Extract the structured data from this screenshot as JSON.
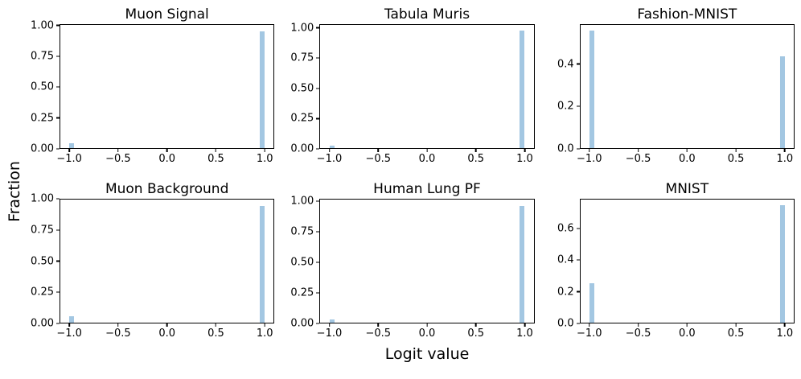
{
  "figure": {
    "ylabel": "Fraction",
    "xlabel": "Logit value",
    "bar_color": "#a3c7e2",
    "axis_color": "#000000",
    "background": "#ffffff"
  },
  "chart_data": [
    {
      "type": "bar",
      "title": "Muon Signal",
      "bars": [
        {
          "x": -0.98,
          "fraction": 0.04
        },
        {
          "x": 0.98,
          "fraction": 0.96
        }
      ],
      "bar_width": 0.05,
      "xlim": [
        -1.1,
        1.1
      ],
      "ylim": [
        0,
        1.01
      ],
      "xticks": [
        -1.0,
        -0.5,
        0.0,
        0.5,
        1.0
      ],
      "xtick_labels": [
        "−1.0",
        "−0.5",
        "0.0",
        "0.5",
        "1.0"
      ],
      "yticks": [
        0.0,
        0.25,
        0.5,
        0.75,
        1.0
      ],
      "ytick_labels": [
        "0.00",
        "0.25",
        "0.50",
        "0.75",
        "1.00"
      ]
    },
    {
      "type": "bar",
      "title": "Tabula Muris",
      "bars": [
        {
          "x": -0.98,
          "fraction": 0.02
        },
        {
          "x": 0.98,
          "fraction": 0.98
        }
      ],
      "bar_width": 0.05,
      "xlim": [
        -1.1,
        1.1
      ],
      "ylim": [
        0,
        1.03
      ],
      "xticks": [
        -1.0,
        -0.5,
        0.0,
        0.5,
        1.0
      ],
      "xtick_labels": [
        "−1.0",
        "−0.5",
        "0.0",
        "0.5",
        "1.0"
      ],
      "yticks": [
        0.0,
        0.25,
        0.5,
        0.75,
        1.0
      ],
      "ytick_labels": [
        "0.00",
        "0.25",
        "0.50",
        "0.75",
        "1.00"
      ]
    },
    {
      "type": "bar",
      "title": "Fashion-MNIST",
      "bars": [
        {
          "x": -0.98,
          "fraction": 0.56
        },
        {
          "x": 0.98,
          "fraction": 0.44
        }
      ],
      "bar_width": 0.05,
      "xlim": [
        -1.1,
        1.1
      ],
      "ylim": [
        0,
        0.588
      ],
      "xticks": [
        -1.0,
        -0.5,
        0.0,
        0.5,
        1.0
      ],
      "xtick_labels": [
        "−1.0",
        "−0.5",
        "0.0",
        "0.5",
        "1.0"
      ],
      "yticks": [
        0.0,
        0.2,
        0.4
      ],
      "ytick_labels": [
        "0.0",
        "0.2",
        "0.4"
      ]
    },
    {
      "type": "bar",
      "title": "Muon Background",
      "bars": [
        {
          "x": -0.98,
          "fraction": 0.05
        },
        {
          "x": 0.98,
          "fraction": 0.95
        }
      ],
      "bar_width": 0.05,
      "xlim": [
        -1.1,
        1.1
      ],
      "ylim": [
        0,
        1.0
      ],
      "xticks": [
        -1.0,
        -0.5,
        0.0,
        0.5,
        1.0
      ],
      "xtick_labels": [
        "−1.0",
        "−0.5",
        "0.0",
        "0.5",
        "1.0"
      ],
      "yticks": [
        0.0,
        0.25,
        0.5,
        0.75,
        1.0
      ],
      "ytick_labels": [
        "0.00",
        "0.25",
        "0.50",
        "0.75",
        "1.00"
      ]
    },
    {
      "type": "bar",
      "title": "Human Lung PF",
      "bars": [
        {
          "x": -0.98,
          "fraction": 0.03
        },
        {
          "x": 0.98,
          "fraction": 0.97
        }
      ],
      "bar_width": 0.05,
      "xlim": [
        -1.1,
        1.1
      ],
      "ylim": [
        0,
        1.02
      ],
      "xticks": [
        -1.0,
        -0.5,
        0.0,
        0.5,
        1.0
      ],
      "xtick_labels": [
        "−1.0",
        "−0.5",
        "0.0",
        "0.5",
        "1.0"
      ],
      "yticks": [
        0.0,
        0.25,
        0.5,
        0.75,
        1.0
      ],
      "ytick_labels": [
        "0.00",
        "0.25",
        "0.50",
        "0.75",
        "1.00"
      ]
    },
    {
      "type": "bar",
      "title": "MNIST",
      "bars": [
        {
          "x": -0.98,
          "fraction": 0.25
        },
        {
          "x": 0.98,
          "fraction": 0.75
        }
      ],
      "bar_width": 0.05,
      "xlim": [
        -1.1,
        1.1
      ],
      "ylim": [
        0,
        0.7875
      ],
      "xticks": [
        -1.0,
        -0.5,
        0.0,
        0.5,
        1.0
      ],
      "xtick_labels": [
        "−1.0",
        "−0.5",
        "0.0",
        "0.5",
        "1.0"
      ],
      "yticks": [
        0.0,
        0.2,
        0.4,
        0.6
      ],
      "ytick_labels": [
        "0.0",
        "0.2",
        "0.4",
        "0.6"
      ]
    }
  ]
}
